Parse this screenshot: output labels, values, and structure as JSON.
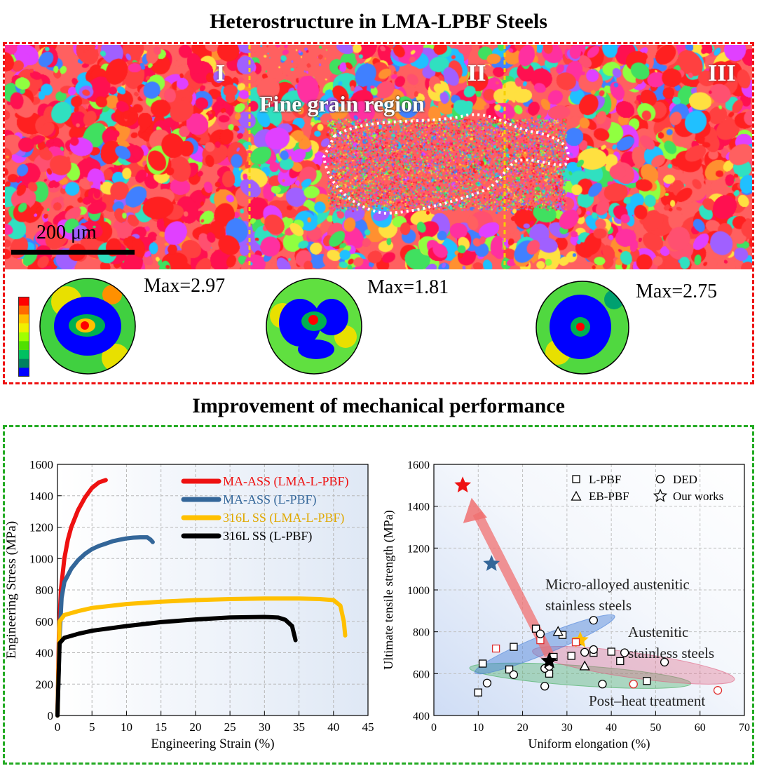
{
  "top_title": "Heterostructure in LMA-LPBF Steels",
  "bottom_title": "Improvement  of mechanical performance",
  "ebsd": {
    "scale_label": "200 μm",
    "regions": [
      "I",
      "II",
      "III"
    ],
    "fine_label": "Fine grain region"
  },
  "pole_figures": [
    {
      "max_label": "Max=2.97"
    },
    {
      "max_label": "Max=1.81"
    },
    {
      "max_label": "Max=2.75"
    }
  ],
  "colors": {
    "colorbar": [
      "#ff0000",
      "#ff6a00",
      "#ffc000",
      "#f0f000",
      "#a0ff00",
      "#50e000",
      "#00c060",
      "#008060",
      "#0000ff"
    ]
  },
  "chart_data": [
    {
      "type": "line",
      "xlabel": "Engineering Strain (%)",
      "ylabel": "Engineering Stress (MPa)",
      "xlim": [
        0,
        45
      ],
      "ylim": [
        0,
        1600
      ],
      "xticks": [
        "0",
        "5",
        "10",
        "15",
        "20",
        "25",
        "30",
        "35",
        "40",
        "45"
      ],
      "yticks": [
        "0",
        "200",
        "400",
        "600",
        "800",
        "1000",
        "1200",
        "1400",
        "1600"
      ],
      "grid": true,
      "legend_position": "top-right",
      "series": [
        {
          "name": "MA-ASS (LMA-L-PBF)",
          "color": "#ee1111",
          "label_color": "#ee1111",
          "points": [
            [
              0,
              0
            ],
            [
              0.2,
              500
            ],
            [
              0.5,
              800
            ],
            [
              1,
              1000
            ],
            [
              1.5,
              1120
            ],
            [
              2,
              1200
            ],
            [
              3,
              1310
            ],
            [
              4,
              1390
            ],
            [
              5,
              1450
            ],
            [
              6,
              1485
            ],
            [
              7,
              1500
            ]
          ]
        },
        {
          "name": "MA-ASS (L-PBF)",
          "color": "#336699",
          "label_color": "#336699",
          "points": [
            [
              0,
              0
            ],
            [
              0.3,
              500
            ],
            [
              0.6,
              750
            ],
            [
              1,
              850
            ],
            [
              2,
              935
            ],
            [
              3,
              990
            ],
            [
              4,
              1030
            ],
            [
              5,
              1060
            ],
            [
              6,
              1080
            ],
            [
              7,
              1095
            ],
            [
              8,
              1110
            ],
            [
              9,
              1120
            ],
            [
              10,
              1128
            ],
            [
              11,
              1133
            ],
            [
              12,
              1135
            ],
            [
              13,
              1135
            ],
            [
              13.5,
              1120
            ],
            [
              13.8,
              1105
            ]
          ]
        },
        {
          "name": "316L SS (LMA-L-PBF)",
          "color": "#ffc000",
          "label_color": "#e0a800",
          "points": [
            [
              0,
              0
            ],
            [
              0.3,
              600
            ],
            [
              1,
              640
            ],
            [
              3,
              665
            ],
            [
              5,
              685
            ],
            [
              10,
              710
            ],
            [
              15,
              725
            ],
            [
              20,
              735
            ],
            [
              25,
              742
            ],
            [
              30,
              745
            ],
            [
              35,
              745
            ],
            [
              38,
              742
            ],
            [
              40,
              735
            ],
            [
              41,
              700
            ],
            [
              41.5,
              600
            ],
            [
              41.7,
              510
            ]
          ]
        },
        {
          "name": "316L SS (L-PBF)",
          "color": "#000000",
          "label_color": "#000000",
          "points": [
            [
              0,
              0
            ],
            [
              0.3,
              460
            ],
            [
              1,
              495
            ],
            [
              3,
              520
            ],
            [
              5,
              540
            ],
            [
              10,
              570
            ],
            [
              15,
              595
            ],
            [
              20,
              612
            ],
            [
              25,
              625
            ],
            [
              30,
              628
            ],
            [
              32,
              624
            ],
            [
              33,
              610
            ],
            [
              34,
              570
            ],
            [
              34.5,
              480
            ]
          ]
        }
      ]
    },
    {
      "type": "scatter",
      "xlabel": "Uniform elongation (%)",
      "ylabel": "Ultimate tensile strength (MPa)",
      "xlim": [
        0,
        70
      ],
      "ylim": [
        400,
        1600
      ],
      "xticks": [
        "0",
        "10",
        "20",
        "30",
        "40",
        "50",
        "60",
        "70"
      ],
      "yticks": [
        "400",
        "600",
        "800",
        "1000",
        "1200",
        "1400",
        "1600"
      ],
      "legend": [
        {
          "label": "L-PBF",
          "marker": "square"
        },
        {
          "label": "DED",
          "marker": "circle"
        },
        {
          "label": "EB-PBF",
          "marker": "triangle"
        },
        {
          "label": "Our works",
          "marker": "star"
        }
      ],
      "regions": [
        {
          "label": "Micro-alloyed austenitic\nstainless steels",
          "color": "#4a80d8"
        },
        {
          "label": "Austenitic\nstainless steels",
          "color": "#3aaa55"
        },
        {
          "label": "Post–heat treatment",
          "color": "#e06080"
        }
      ],
      "series": [
        {
          "name": "L-PBF",
          "marker": "square",
          "points": [
            [
              10,
              510
            ],
            [
              11,
              648
            ],
            [
              17,
              620
            ],
            [
              18,
              728
            ],
            [
              23,
              815
            ],
            [
              26,
              600
            ],
            [
              27,
              680
            ],
            [
              29,
              785
            ],
            [
              31,
              685
            ],
            [
              33,
              755
            ],
            [
              36,
              700
            ],
            [
              40,
              705
            ],
            [
              42,
              660
            ],
            [
              48,
              565
            ],
            [
              14,
              720
            ],
            [
              24,
              760
            ]
          ]
        },
        {
          "name": "DED",
          "marker": "circle",
          "points": [
            [
              12,
              555
            ],
            [
              18,
              595
            ],
            [
              25,
              540
            ],
            [
              25,
              625
            ],
            [
              26,
              635
            ],
            [
              34,
              702
            ],
            [
              36,
              715
            ],
            [
              38,
              550
            ],
            [
              45,
              550
            ],
            [
              52,
              655
            ],
            [
              64,
              520
            ],
            [
              36,
              855
            ],
            [
              24,
              790
            ],
            [
              43,
              700
            ]
          ]
        },
        {
          "name": "EB-PBF",
          "marker": "triangle",
          "points": [
            [
              28,
              800
            ],
            [
              34,
              635
            ]
          ]
        },
        {
          "name": "Our works",
          "marker": "star",
          "points": [
            [
              6.5,
              1500,
              "#ee1111"
            ],
            [
              13,
              1125,
              "#336699"
            ],
            [
              33,
              760,
              "#ffc000"
            ],
            [
              26,
              660,
              "#000000"
            ]
          ]
        }
      ],
      "red_outlined": [
        [
          14,
          720
        ],
        [
          24,
          760
        ],
        [
          32,
          750
        ],
        [
          45,
          550
        ],
        [
          64,
          520
        ]
      ]
    }
  ]
}
